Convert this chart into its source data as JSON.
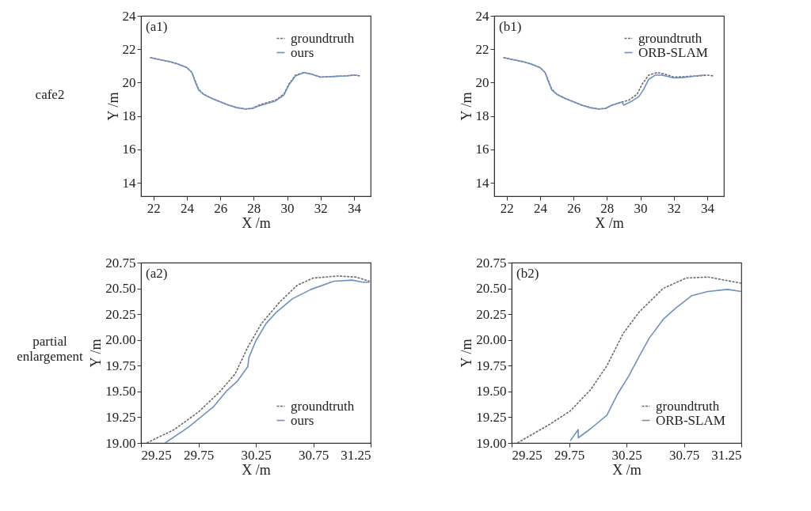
{
  "chart_data": [
    {
      "type": "line",
      "title": "(a1)",
      "annotations": [
        "cafe2"
      ],
      "xlabel": "X /m",
      "ylabel": "Y /m",
      "xlim": [
        21.25,
        35
      ],
      "ylim": [
        13.2,
        24
      ],
      "xticks": [
        22,
        24,
        26,
        28,
        30,
        32,
        34
      ],
      "yticks": [
        14,
        16,
        18,
        20,
        22,
        24
      ],
      "legend": "top right",
      "series": [
        {
          "name": "groundtruth",
          "color": "#6b6b6b",
          "line_style": "dashed",
          "x": [
            21.8,
            22.5,
            23,
            23.5,
            24,
            24.3,
            24.5,
            24.7,
            25,
            25.5,
            26,
            26.5,
            27,
            27.5,
            27.9,
            28.3,
            28.8,
            29.3,
            29.8,
            30.1,
            30.5,
            31,
            31.5,
            32,
            32.5,
            33,
            33.5,
            34,
            34.4
          ],
          "values": [
            21.5,
            21.35,
            21.25,
            21.1,
            20.9,
            20.6,
            20.1,
            19.6,
            19.3,
            19.05,
            18.85,
            18.65,
            18.5,
            18.42,
            18.45,
            18.65,
            18.8,
            18.95,
            19.3,
            19.9,
            20.45,
            20.6,
            20.5,
            20.33,
            20.35,
            20.38,
            20.4,
            20.45,
            20.4
          ]
        },
        {
          "name": "ours",
          "color": "#7090c0",
          "line_style": "solid",
          "x": [
            21.8,
            22.5,
            23,
            23.5,
            24,
            24.3,
            24.5,
            24.7,
            25,
            25.5,
            26,
            26.5,
            27,
            27.5,
            27.9,
            28.3,
            28.8,
            29.3,
            29.8,
            30.1,
            30.5,
            31,
            31.5,
            32,
            32.5,
            33,
            33.5,
            34,
            34.2
          ],
          "values": [
            21.5,
            21.35,
            21.25,
            21.1,
            20.9,
            20.6,
            20.05,
            19.55,
            19.3,
            19.05,
            18.85,
            18.65,
            18.5,
            18.42,
            18.45,
            18.6,
            18.75,
            18.9,
            19.25,
            19.85,
            20.4,
            20.6,
            20.5,
            20.33,
            20.35,
            20.38,
            20.4,
            20.45,
            20.45
          ]
        }
      ]
    },
    {
      "type": "line",
      "title": "(b1)",
      "xlabel": "X /m",
      "ylabel": "Y /m",
      "xlim": [
        21.25,
        35
      ],
      "ylim": [
        13.2,
        24
      ],
      "xticks": [
        22,
        24,
        26,
        28,
        30,
        32,
        34
      ],
      "yticks": [
        14,
        16,
        18,
        20,
        22,
        24
      ],
      "legend": "top right",
      "series": [
        {
          "name": "groundtruth",
          "color": "#6b6b6b",
          "line_style": "dashed",
          "x": [
            21.8,
            22.5,
            23,
            23.5,
            24,
            24.3,
            24.5,
            24.7,
            25,
            25.5,
            26,
            26.5,
            27,
            27.5,
            27.9,
            28.3,
            28.8,
            29.3,
            29.8,
            30.1,
            30.5,
            31,
            31.5,
            32,
            32.5,
            33,
            33.5,
            34,
            34.4
          ],
          "values": [
            21.5,
            21.35,
            21.25,
            21.1,
            20.9,
            20.6,
            20.1,
            19.6,
            19.3,
            19.05,
            18.85,
            18.65,
            18.5,
            18.42,
            18.45,
            18.65,
            18.8,
            18.95,
            19.3,
            19.9,
            20.45,
            20.6,
            20.5,
            20.33,
            20.35,
            20.38,
            20.4,
            20.45,
            20.4
          ]
        },
        {
          "name": "ORB-SLAM",
          "color": "#7090c0",
          "line_style": "solid",
          "x": [
            21.8,
            22.5,
            23,
            23.5,
            24,
            24.3,
            24.5,
            24.7,
            25,
            25.5,
            26,
            26.5,
            27,
            27.5,
            27.9,
            28.3,
            28.9,
            29.0,
            29.5,
            29.9,
            30.2,
            30.5,
            30.9,
            31.3,
            31.7,
            32,
            32.5,
            33,
            33.5,
            33.8
          ],
          "values": [
            21.5,
            21.35,
            21.25,
            21.1,
            20.9,
            20.6,
            20.05,
            19.55,
            19.3,
            19.05,
            18.85,
            18.65,
            18.5,
            18.42,
            18.45,
            18.65,
            18.85,
            18.65,
            18.9,
            19.15,
            19.6,
            20.2,
            20.45,
            20.45,
            20.35,
            20.28,
            20.3,
            20.35,
            20.42,
            20.45
          ]
        }
      ]
    },
    {
      "type": "line",
      "title": "(a2)",
      "annotations": [
        "partial enlargement"
      ],
      "xlabel": "X /m",
      "ylabel": "Y /m",
      "xlim": [
        29.25,
        31.25
      ],
      "ylim": [
        19,
        20.75
      ],
      "xticks": [
        29.25,
        29.75,
        30.25,
        30.75,
        31.25
      ],
      "yticks": [
        {
          "value": 19,
          "label": "19.00"
        },
        19.25,
        {
          "value": 19.5,
          "label": "19.50"
        },
        19.75,
        {
          "value": 20,
          "label": "20.00"
        },
        20.25,
        {
          "value": 20.5,
          "label": "20.50"
        },
        20.75
      ],
      "legend": "bottom right",
      "series": [
        {
          "name": "groundtruth",
          "color": "#6b6b6b",
          "line_style": "dashed",
          "x": [
            29.3,
            29.54,
            29.75,
            29.93,
            30.07,
            30.18,
            30.3,
            30.46,
            30.61,
            30.75,
            30.96,
            31.12,
            31.24
          ],
          "values": [
            19.0,
            19.13,
            19.3,
            19.49,
            19.67,
            19.93,
            20.16,
            20.37,
            20.53,
            20.6,
            20.62,
            20.61,
            20.57
          ]
        },
        {
          "name": "ours",
          "color": "#7090c0",
          "line_style": "solid",
          "x": [
            29.46,
            29.66,
            29.88,
            30.0,
            30.09,
            30.18,
            30.19,
            30.25,
            30.34,
            30.43,
            30.57,
            30.73,
            30.93,
            31.09,
            31.18,
            31.24
          ],
          "values": [
            19.0,
            19.15,
            19.35,
            19.51,
            19.6,
            19.74,
            19.83,
            19.99,
            20.16,
            20.27,
            20.4,
            20.49,
            20.57,
            20.58,
            20.56,
            20.56
          ]
        }
      ]
    },
    {
      "type": "line",
      "title": "(b2)",
      "xlabel": "X /m",
      "ylabel": "Y /m",
      "xlim": [
        29.25,
        31.25
      ],
      "ylim": [
        19,
        20.75
      ],
      "xticks": [
        29.25,
        29.75,
        30.25,
        30.75,
        31.25
      ],
      "yticks": [
        {
          "value": 19,
          "label": "19.00"
        },
        19.25,
        {
          "value": 19.5,
          "label": "19.50"
        },
        19.75,
        {
          "value": 20,
          "label": "20.00"
        },
        20.25,
        {
          "value": 20.5,
          "label": "20.50"
        },
        20.75
      ],
      "legend": "bottom right",
      "series": [
        {
          "name": "groundtruth",
          "color": "#6b6b6b",
          "line_style": "dashed",
          "x": [
            29.3,
            29.58,
            29.76,
            29.94,
            30.08,
            30.22,
            30.36,
            30.57,
            30.77,
            30.96,
            31.25
          ],
          "values": [
            19.0,
            19.18,
            19.31,
            19.52,
            19.75,
            20.06,
            20.27,
            20.5,
            20.6,
            20.61,
            20.55
          ]
        },
        {
          "name": "ORB-SLAM",
          "color": "#7090c0",
          "line_style": "solid",
          "x": [
            29.76,
            29.83,
            29.83,
            29.94,
            30.08,
            30.17,
            30.27,
            30.36,
            30.45,
            30.57,
            30.68,
            30.82,
            30.96,
            31.13,
            31.25
          ],
          "values": [
            19.02,
            19.13,
            19.05,
            19.14,
            19.27,
            19.47,
            19.65,
            19.84,
            20.02,
            20.2,
            20.31,
            20.43,
            20.47,
            20.49,
            20.47
          ]
        }
      ]
    }
  ]
}
